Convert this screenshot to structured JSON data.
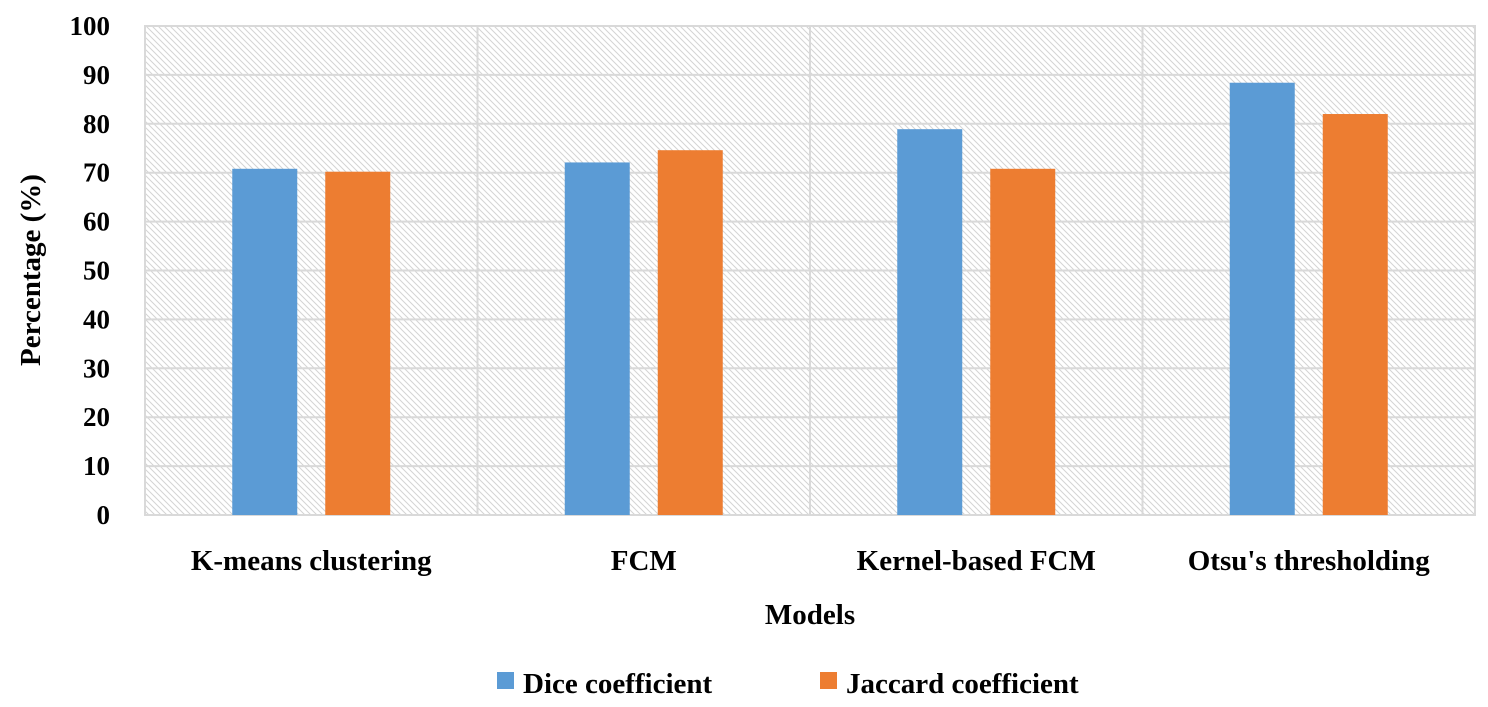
{
  "chart_data": {
    "type": "bar",
    "title": "",
    "xlabel": "Models",
    "ylabel": "Percentage (%)",
    "ylim": [
      0,
      100
    ],
    "yticks": [
      "0",
      "10",
      "20",
      "30",
      "40",
      "50",
      "60",
      "70",
      "80",
      "90",
      "100"
    ],
    "categories": [
      "K-means clustering",
      "FCM",
      "Kernel-based FCM",
      "Otsu's thresholding"
    ],
    "series": [
      {
        "name": "Dice coefficient",
        "values": [
          70.8,
          72.1,
          78.9,
          88.4
        ],
        "color": "#5b9bd5"
      },
      {
        "name": "Jaccard coefficient",
        "values": [
          70.2,
          74.6,
          70.8,
          82.0
        ],
        "color": "#ed7d31"
      }
    ],
    "grid": true,
    "legend_position": "bottom"
  }
}
